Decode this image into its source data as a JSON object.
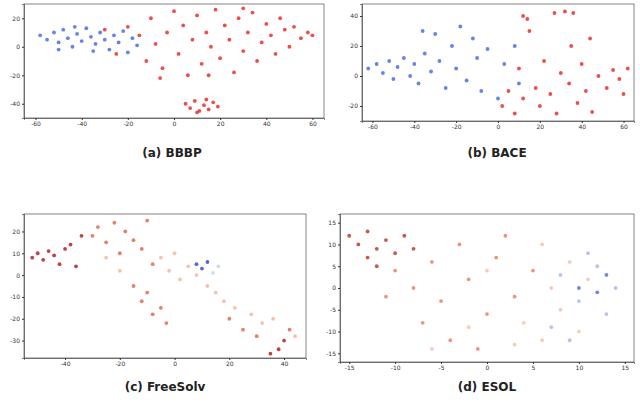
{
  "chart_data": [
    {
      "type": "scatter",
      "title": "(a) BBBP",
      "xlim": [
        -65,
        65
      ],
      "ylim": [
        -50,
        30
      ],
      "xticks": [
        -60,
        -40,
        -20,
        0,
        20,
        40,
        60
      ],
      "yticks": [
        -40,
        -20,
        0,
        20
      ],
      "series": [
        {
          "color": "#4a6fe3",
          "x": [
            -58,
            -55,
            -52,
            -50,
            -48,
            -46,
            -44,
            -42,
            -40,
            -38,
            -36,
            -34,
            -32,
            -30,
            -28,
            -26,
            -24,
            -22,
            -20,
            -18,
            -16,
            -50,
            -43,
            -35
          ],
          "values": [
            8,
            5,
            10,
            3,
            12,
            6,
            0,
            9,
            4,
            13,
            7,
            2,
            10,
            5,
            -2,
            8,
            3,
            11,
            -4,
            6,
            1,
            -2,
            14,
            -3
          ]
        },
        {
          "color": "#e8302a",
          "x": [
            -30,
            -25,
            -20,
            -15,
            -12,
            -10,
            -8,
            -5,
            -3,
            0,
            2,
            4,
            6,
            8,
            10,
            12,
            14,
            16,
            18,
            20,
            22,
            24,
            26,
            28,
            30,
            32,
            34,
            36,
            38,
            40,
            42,
            44,
            46,
            48,
            50,
            52,
            55,
            58,
            60,
            -6,
            15,
            30,
            5,
            7,
            9,
            11,
            13,
            15,
            17,
            19,
            10,
            14
          ],
          "values": [
            12,
            -5,
            14,
            8,
            -10,
            20,
            2,
            -15,
            10,
            25,
            -5,
            15,
            -20,
            5,
            22,
            -12,
            10,
            0,
            26,
            -8,
            15,
            5,
            -18,
            20,
            -3,
            10,
            24,
            -10,
            3,
            16,
            8,
            -5,
            20,
            12,
            0,
            14,
            6,
            10,
            8,
            -22,
            -20,
            27,
            -40,
            -43,
            -38,
            -45,
            -41,
            -44,
            -39,
            -42,
            -46,
            -37
          ]
        }
      ]
    },
    {
      "type": "scatter",
      "title": "(b) BACE",
      "xlim": [
        -65,
        65
      ],
      "ylim": [
        -30,
        48
      ],
      "xticks": [
        -60,
        -40,
        -20,
        0,
        20,
        40,
        60
      ],
      "yticks": [
        -20,
        0,
        20,
        40
      ],
      "series": [
        {
          "color": "#4a6fe3",
          "x": [
            -62,
            -58,
            -55,
            -52,
            -50,
            -48,
            -45,
            -42,
            -40,
            -38,
            -35,
            -32,
            -30,
            -28,
            -25,
            -22,
            -20,
            -18,
            -15,
            -12,
            -10,
            -8,
            -5,
            0,
            3,
            -36,
            8,
            10
          ],
          "values": [
            5,
            8,
            2,
            10,
            -2,
            6,
            12,
            0,
            8,
            -5,
            15,
            3,
            28,
            10,
            -8,
            20,
            5,
            33,
            -3,
            25,
            12,
            -10,
            18,
            -15,
            8,
            30,
            20,
            -5
          ]
        },
        {
          "color": "#e8302a",
          "x": [
            2,
            5,
            8,
            10,
            12,
            15,
            18,
            20,
            22,
            25,
            27,
            28,
            30,
            32,
            34,
            35,
            38,
            40,
            42,
            44,
            45,
            48,
            52,
            55,
            58,
            60,
            62,
            12,
            14,
            36
          ],
          "values": [
            -20,
            -10,
            -25,
            5,
            -15,
            30,
            -8,
            -20,
            10,
            -12,
            42,
            -25,
            2,
            43,
            -5,
            20,
            -18,
            8,
            -10,
            25,
            -24,
            0,
            -8,
            4,
            -2,
            -12,
            5,
            40,
            38,
            42
          ]
        }
      ]
    },
    {
      "type": "scatter",
      "title": "(c) FreeSolv",
      "xlim": [
        -55,
        48
      ],
      "ylim": [
        -38,
        28
      ],
      "xticks": [
        -40,
        -20,
        0,
        20,
        40
      ],
      "yticks": [
        -30,
        -20,
        -10,
        0,
        10,
        20
      ],
      "series": [
        {
          "color": "#b22222",
          "x": [
            -52,
            -50,
            -48,
            -46,
            -44,
            -42,
            -40,
            -38,
            -36,
            -34,
            38,
            40,
            35
          ],
          "values": [
            8,
            10,
            7,
            11,
            9,
            5,
            12,
            14,
            4,
            18,
            -34,
            -30,
            -36
          ]
        },
        {
          "color": "#e06a50",
          "x": [
            -30,
            -28,
            -25,
            -22,
            -20,
            -18,
            -15,
            -12,
            -10,
            -8,
            -15,
            -12,
            -10,
            -8,
            -5,
            -3,
            20,
            25,
            30,
            42
          ],
          "values": [
            18,
            22,
            15,
            24,
            10,
            20,
            16,
            12,
            25,
            5,
            -5,
            -12,
            -8,
            -18,
            -15,
            -22,
            -20,
            -25,
            -28,
            -25
          ]
        },
        {
          "color": "#f2b8a0",
          "x": [
            -5,
            -2,
            0,
            2,
            5,
            8,
            12,
            15,
            18,
            22,
            28,
            32,
            36,
            44,
            -25,
            -20
          ],
          "values": [
            8,
            2,
            10,
            -2,
            4,
            0,
            -5,
            -8,
            -12,
            -15,
            -18,
            -22,
            -20,
            -28,
            8,
            2
          ]
        },
        {
          "color": "#c9d4f0",
          "x": [
            14,
            16
          ],
          "values": [
            1,
            4
          ]
        },
        {
          "color": "#3050d0",
          "x": [
            10,
            12,
            8
          ],
          "values": [
            3,
            6,
            5
          ]
        }
      ]
    },
    {
      "type": "scatter",
      "title": "(d) ESOL",
      "xlim": [
        -16,
        16
      ],
      "ylim": [
        -17,
        17
      ],
      "xticks": [
        -15,
        -10,
        -5,
        0,
        5,
        10,
        15
      ],
      "yticks": [
        -15,
        -10,
        -5,
        0,
        5,
        10,
        15
      ],
      "series": [
        {
          "color": "#c0392b",
          "x": [
            -15,
            -14,
            -13,
            -12,
            -11,
            -10,
            -13,
            -9,
            -12,
            -8
          ],
          "values": [
            12,
            10,
            13,
            9,
            11,
            8,
            7,
            12,
            5,
            9
          ]
        },
        {
          "color": "#e8826a",
          "x": [
            -10,
            -8,
            -6,
            -5,
            -3,
            -2,
            0,
            -7,
            1,
            3,
            -4,
            2,
            -11,
            5,
            -1
          ],
          "values": [
            4,
            0,
            6,
            -3,
            10,
            2,
            -6,
            -8,
            7,
            -2,
            -12,
            12,
            -2,
            4,
            -14
          ]
        },
        {
          "color": "#f4c2b0",
          "x": [
            4,
            6,
            7,
            8,
            -6,
            9,
            10,
            3,
            11,
            -2,
            0,
            6
          ],
          "values": [
            -8,
            10,
            0,
            -5,
            -14,
            6,
            -10,
            -13,
            2,
            -9,
            4,
            -12
          ]
        },
        {
          "color": "#aab8ec",
          "x": [
            8,
            10,
            12,
            13,
            9,
            14,
            11,
            7
          ],
          "values": [
            3,
            -3,
            5,
            -6,
            -12,
            0,
            8,
            -9
          ]
        },
        {
          "color": "#5a6fd8",
          "x": [
            12,
            13,
            10
          ],
          "values": [
            -1,
            3,
            0
          ]
        }
      ]
    }
  ]
}
